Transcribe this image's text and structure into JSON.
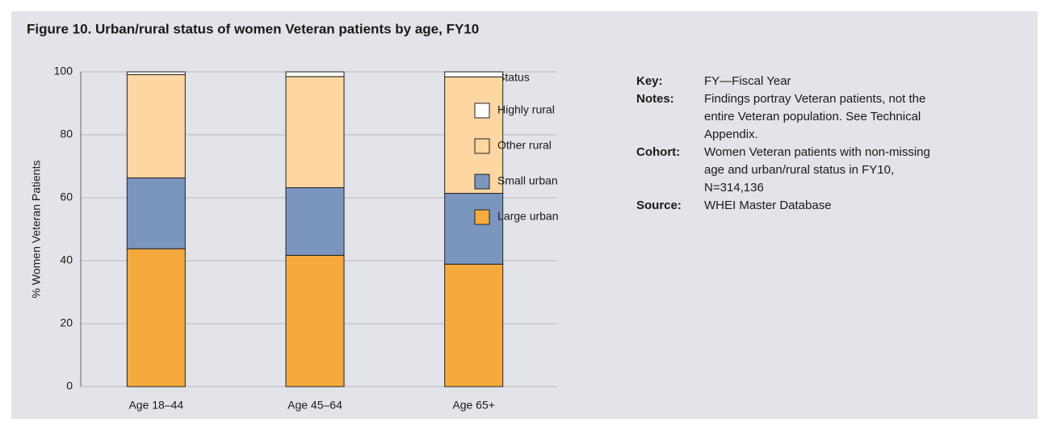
{
  "chart_data": {
    "type": "stacked_bar",
    "title": "Figure 10. Urban/rural status of women Veteran patients by age, FY10",
    "y_label": "% Women Veteran Patients",
    "legend_title": "Status",
    "categories": [
      "Age 18–44",
      "Age 45–64",
      "Age 65+"
    ],
    "series": [
      {
        "name": "Large urban",
        "color": "#f6aa3e",
        "values": [
          43.8,
          41.7,
          38.9
        ]
      },
      {
        "name": "Small urban",
        "color": "#7b96be",
        "values": [
          22.5,
          21.5,
          22.5
        ]
      },
      {
        "name": "Other rural",
        "color": "#fdd6a1",
        "values": [
          32.8,
          35.3,
          37.0
        ]
      },
      {
        "name": "Highly rural",
        "color": "#ffffff",
        "values": [
          0.9,
          1.5,
          1.6
        ]
      }
    ],
    "ylim": [
      0,
      100
    ],
    "yticks": [
      0,
      20,
      40,
      60,
      80,
      100
    ],
    "grid": true
  },
  "notes": [
    {
      "label": "Key:",
      "lines": [
        "FY—Fiscal Year"
      ]
    },
    {
      "label": "Notes:",
      "lines": [
        "Findings portray Veteran patients, not the",
        "entire Veteran population. See Technical",
        "Appendix."
      ]
    },
    {
      "label": "Cohort:",
      "lines": [
        "Women Veteran patients with non-missing",
        "age and urban/rural status in FY10,",
        "N=314,136"
      ]
    },
    {
      "label": "Source:",
      "lines": [
        "WHEI Master Database"
      ]
    }
  ]
}
